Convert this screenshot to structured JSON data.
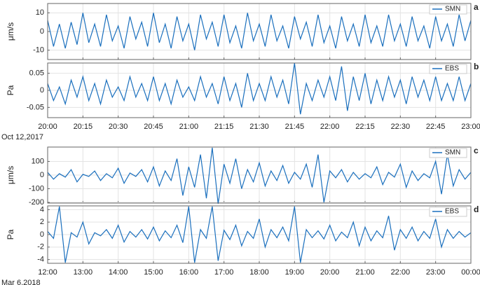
{
  "chart_data": [
    {
      "type": "line",
      "ylabel": "μm/s",
      "panel_label": "a",
      "grid": true,
      "legend": "upper right",
      "x": [
        0,
        2.5,
        5,
        7.5,
        10,
        12.5,
        15,
        17.5,
        20,
        22.5,
        25,
        27.5,
        30,
        32.5,
        35,
        37.5,
        40,
        42.5,
        45,
        47.5,
        50,
        52.5,
        55,
        57.5,
        60,
        62.5,
        65,
        67.5,
        70,
        72.5,
        75,
        77.5,
        80,
        82.5,
        85,
        87.5,
        90,
        92.5,
        95,
        97.5,
        100,
        102.5,
        105,
        107.5,
        110,
        112.5,
        115,
        117.5,
        120,
        122.5,
        125,
        127.5,
        130,
        132.5,
        135,
        137.5,
        140,
        142.5,
        145,
        147.5,
        150,
        152.5,
        155,
        157.5,
        160,
        162.5,
        165,
        167.5,
        170,
        172.5,
        175,
        177.5,
        180
      ],
      "xlim": [
        0,
        180
      ],
      "xticks": [
        0,
        15,
        30,
        45,
        60,
        75,
        90,
        105,
        120,
        135,
        150,
        165,
        180
      ],
      "ylim": [
        -15,
        15
      ],
      "yticks": [
        -10,
        0,
        10
      ],
      "series": [
        {
          "name": "SMN",
          "color": "#1a6fbd",
          "values": [
            6,
            -8,
            4,
            -9,
            5,
            -7,
            10,
            -6,
            4,
            -8,
            9,
            -5,
            3,
            -9,
            8,
            -4,
            5,
            -8,
            10,
            -6,
            4,
            -9,
            8,
            -5,
            4,
            -10,
            9,
            -4,
            5,
            -8,
            9,
            -6,
            3,
            -9,
            10,
            -5,
            4,
            -8,
            9,
            -5,
            3,
            -9,
            8,
            -4,
            5,
            -8,
            9,
            -6,
            3,
            -9,
            8,
            -5,
            4,
            -8,
            9,
            -6,
            3,
            -8,
            9,
            -5,
            4,
            -8,
            8,
            -5,
            3,
            -9,
            8,
            -5,
            4,
            -8,
            9,
            -5,
            6
          ]
        }
      ]
    },
    {
      "type": "line",
      "ylabel": "Pa",
      "panel_label": "b",
      "grid": true,
      "legend": "upper right",
      "date_label": "Oct 12,2017",
      "x": [
        0,
        2.5,
        5,
        7.5,
        10,
        12.5,
        15,
        17.5,
        20,
        22.5,
        25,
        27.5,
        30,
        32.5,
        35,
        37.5,
        40,
        42.5,
        45,
        47.5,
        50,
        52.5,
        55,
        57.5,
        60,
        62.5,
        65,
        67.5,
        70,
        72.5,
        75,
        77.5,
        80,
        82.5,
        85,
        87.5,
        90,
        92.5,
        95,
        97.5,
        100,
        102.5,
        105,
        107.5,
        110,
        112.5,
        115,
        117.5,
        120,
        122.5,
        125,
        127.5,
        130,
        132.5,
        135,
        137.5,
        140,
        142.5,
        145,
        147.5,
        150,
        152.5,
        155,
        157.5,
        160,
        162.5,
        165,
        167.5,
        170,
        172.5,
        175,
        177.5,
        180
      ],
      "xlim": [
        0,
        180
      ],
      "xticks": [
        {
          "value": 0,
          "label": "20:00"
        },
        {
          "value": 15,
          "label": "20:15"
        },
        {
          "value": 30,
          "label": "20:30"
        },
        {
          "value": 45,
          "label": "20:45"
        },
        {
          "value": 60,
          "label": "21:00"
        },
        {
          "value": 75,
          "label": "21:15"
        },
        {
          "value": 90,
          "label": "21:30"
        },
        {
          "value": 105,
          "label": "21:45"
        },
        {
          "value": 120,
          "label": "22:00"
        },
        {
          "value": 135,
          "label": "22:15"
        },
        {
          "value": 150,
          "label": "22:30"
        },
        {
          "value": 165,
          "label": "22:45"
        },
        {
          "value": 180,
          "label": "23:00"
        }
      ],
      "ylim": [
        -0.08,
        0.08
      ],
      "yticks": [
        -0.05,
        0,
        0.05
      ],
      "series": [
        {
          "name": "EBS",
          "color": "#1a6fbd",
          "values": [
            0.02,
            -0.03,
            0.01,
            -0.04,
            0.03,
            -0.02,
            0.04,
            -0.03,
            0.02,
            -0.04,
            0.03,
            -0.02,
            0.01,
            -0.03,
            0.04,
            -0.02,
            0.02,
            -0.03,
            0.04,
            -0.03,
            0.02,
            -0.04,
            0.03,
            -0.02,
            0.01,
            -0.03,
            0.04,
            -0.02,
            0.02,
            -0.04,
            0.04,
            -0.03,
            0.02,
            -0.05,
            0.05,
            -0.03,
            0.02,
            -0.03,
            0.04,
            -0.02,
            0.03,
            -0.04,
            0.08,
            -0.07,
            0.02,
            -0.03,
            0.03,
            -0.02,
            0.04,
            -0.03,
            0.07,
            -0.06,
            0.04,
            -0.03,
            0.05,
            -0.04,
            0.03,
            -0.03,
            0.04,
            -0.02,
            0.03,
            -0.04,
            0.04,
            -0.02,
            0.03,
            -0.03,
            0.04,
            -0.03,
            0.02,
            -0.03,
            0.04,
            -0.03,
            0.02
          ]
        }
      ]
    },
    {
      "type": "line",
      "ylabel": "μm/s",
      "panel_label": "c",
      "grid": true,
      "legend": "upper right",
      "x": [
        0,
        10,
        20,
        30,
        40,
        50,
        60,
        70,
        80,
        90,
        100,
        110,
        120,
        130,
        140,
        150,
        160,
        170,
        180,
        190,
        200,
        210,
        220,
        230,
        240,
        250,
        260,
        270,
        280,
        290,
        300,
        310,
        320,
        330,
        340,
        350,
        360,
        370,
        380,
        390,
        400,
        410,
        420,
        430,
        440,
        450,
        460,
        470,
        480,
        490,
        500,
        510,
        520,
        530,
        540,
        550,
        560,
        570,
        580,
        590,
        600,
        610,
        620,
        630,
        640,
        650,
        660,
        670,
        680,
        690,
        700,
        710,
        720
      ],
      "xlim": [
        0,
        720
      ],
      "xticks": [
        0,
        60,
        120,
        180,
        240,
        300,
        360,
        420,
        480,
        540,
        600,
        660,
        720
      ],
      "ylim": [
        -205,
        205
      ],
      "yticks": [
        -200,
        -100,
        0,
        100
      ],
      "series": [
        {
          "name": "SMN",
          "color": "#1a6fbd",
          "values": [
            20,
            -30,
            10,
            -15,
            40,
            -50,
            5,
            -10,
            30,
            -40,
            10,
            -20,
            50,
            -60,
            15,
            -10,
            40,
            -50,
            60,
            -80,
            30,
            -40,
            120,
            -150,
            60,
            -90,
            150,
            -170,
            200,
            -210,
            80,
            -60,
            120,
            -100,
            40,
            -50,
            90,
            -80,
            30,
            -40,
            70,
            -60,
            20,
            -30,
            80,
            -90,
            150,
            -200,
            30,
            -20,
            40,
            -50,
            20,
            -30,
            10,
            -20,
            60,
            -70,
            20,
            -15,
            80,
            -90,
            30,
            -40,
            10,
            -20,
            100,
            -140,
            150,
            -80,
            40,
            -30,
            20
          ]
        }
      ]
    },
    {
      "type": "line",
      "ylabel": "Pa",
      "panel_label": "d",
      "grid": true,
      "legend": "upper right",
      "date_label": "Mar 6,2018",
      "x": [
        0,
        10,
        20,
        30,
        40,
        50,
        60,
        70,
        80,
        90,
        100,
        110,
        120,
        130,
        140,
        150,
        160,
        170,
        180,
        190,
        200,
        210,
        220,
        230,
        240,
        250,
        260,
        270,
        280,
        290,
        300,
        310,
        320,
        330,
        340,
        350,
        360,
        370,
        380,
        390,
        400,
        410,
        420,
        430,
        440,
        450,
        460,
        470,
        480,
        490,
        500,
        510,
        520,
        530,
        540,
        550,
        560,
        570,
        580,
        590,
        600,
        610,
        620,
        630,
        640,
        650,
        660,
        670,
        680,
        690,
        700,
        710,
        720
      ],
      "xlim": [
        0,
        720
      ],
      "xticks": [
        {
          "value": 0,
          "label": "12:00"
        },
        {
          "value": 60,
          "label": "13:00"
        },
        {
          "value": 120,
          "label": "14:00"
        },
        {
          "value": 180,
          "label": "15:00"
        },
        {
          "value": 240,
          "label": "16:00"
        },
        {
          "value": 300,
          "label": "17:00"
        },
        {
          "value": 360,
          "label": "18:00"
        },
        {
          "value": 420,
          "label": "19:00"
        },
        {
          "value": 480,
          "label": "20:00"
        },
        {
          "value": 540,
          "label": "21:00"
        },
        {
          "value": 600,
          "label": "22:00"
        },
        {
          "value": 660,
          "label": "23:00"
        },
        {
          "value": 720,
          "label": "00:00"
        }
      ],
      "ylim": [
        -4.6,
        4.6
      ],
      "yticks": [
        -4,
        -2,
        0,
        2,
        4
      ],
      "series": [
        {
          "name": "EBS",
          "color": "#1a6fbd",
          "values": [
            0.5,
            -0.6,
            4.5,
            -4.5,
            0.3,
            -0.4,
            2,
            -1.5,
            0.3,
            -0.2,
            0.8,
            -0.6,
            1.5,
            -1.2,
            0.5,
            -0.4,
            0.8,
            -0.7,
            1.2,
            -1,
            0.6,
            -0.5,
            1.5,
            -1.3,
            4.5,
            -4.5,
            0.8,
            -0.6,
            4.5,
            -4.2,
            0.7,
            -0.8,
            1.5,
            -1.8,
            0.5,
            -0.6,
            2.5,
            -2,
            0.8,
            -0.5,
            1.2,
            -1,
            4.5,
            -4.5,
            0.8,
            -0.5,
            0.6,
            -0.7,
            1.5,
            -1,
            0.4,
            -0.5,
            2,
            -1.8,
            1.2,
            -1,
            0.6,
            -0.5,
            3,
            -2.5,
            0.8,
            -0.6,
            1.2,
            -1,
            0.5,
            -0.6,
            2.5,
            -2,
            0.8,
            -0.6,
            0.5,
            -0.4,
            0.3
          ]
        }
      ]
    }
  ]
}
